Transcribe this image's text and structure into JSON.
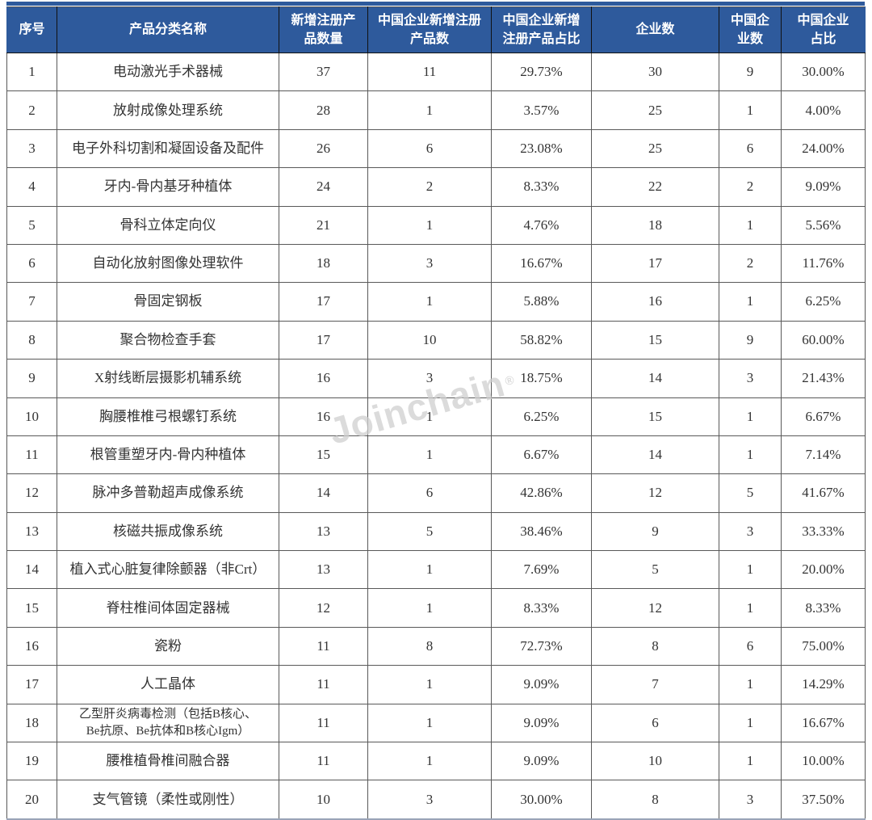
{
  "chart_data": {
    "type": "table",
    "title": "",
    "columns": [
      "序号",
      "产品分类名称",
      "新增注册产品数量",
      "中国企业新增注册产品数",
      "中国企业新增注册产品占比",
      "企业数",
      "中国企业数",
      "中国企业占比"
    ],
    "header_display": [
      "序号",
      "产品分类名称",
      "新增注册产\n品数量",
      "中国企业新增注册\n产品数",
      "中国企业新增\n注册产品占比",
      "企业数",
      "中国企\n业数",
      "中国企业\n占比"
    ],
    "rows": [
      [
        "1",
        "电动激光手术器械",
        "37",
        "11",
        "29.73%",
        "30",
        "9",
        "30.00%"
      ],
      [
        "2",
        "放射成像处理系统",
        "28",
        "1",
        "3.57%",
        "25",
        "1",
        "4.00%"
      ],
      [
        "3",
        "电子外科切割和凝固设备及配件",
        "26",
        "6",
        "23.08%",
        "25",
        "6",
        "24.00%"
      ],
      [
        "4",
        "牙内-骨内基牙种植体",
        "24",
        "2",
        "8.33%",
        "22",
        "2",
        "9.09%"
      ],
      [
        "5",
        "骨科立体定向仪",
        "21",
        "1",
        "4.76%",
        "18",
        "1",
        "5.56%"
      ],
      [
        "6",
        "自动化放射图像处理软件",
        "18",
        "3",
        "16.67%",
        "17",
        "2",
        "11.76%"
      ],
      [
        "7",
        "骨固定钢板",
        "17",
        "1",
        "5.88%",
        "16",
        "1",
        "6.25%"
      ],
      [
        "8",
        "聚合物检查手套",
        "17",
        "10",
        "58.82%",
        "15",
        "9",
        "60.00%"
      ],
      [
        "9",
        "X射线断层摄影机辅系统",
        "16",
        "3",
        "18.75%",
        "14",
        "3",
        "21.43%"
      ],
      [
        "10",
        "胸腰椎椎弓根螺钉系统",
        "16",
        "1",
        "6.25%",
        "15",
        "1",
        "6.67%"
      ],
      [
        "11",
        "根管重塑牙内-骨内种植体",
        "15",
        "1",
        "6.67%",
        "14",
        "1",
        "7.14%"
      ],
      [
        "12",
        "脉冲多普勒超声成像系统",
        "14",
        "6",
        "42.86%",
        "12",
        "5",
        "41.67%"
      ],
      [
        "13",
        "核磁共振成像系统",
        "13",
        "5",
        "38.46%",
        "9",
        "3",
        "33.33%"
      ],
      [
        "14",
        "植入式心脏复律除颤器（非Crt）",
        "13",
        "1",
        "7.69%",
        "5",
        "1",
        "20.00%"
      ],
      [
        "15",
        "脊柱椎间体固定器械",
        "12",
        "1",
        "8.33%",
        "12",
        "1",
        "8.33%"
      ],
      [
        "16",
        "瓷粉",
        "11",
        "8",
        "72.73%",
        "8",
        "6",
        "75.00%"
      ],
      [
        "17",
        "人工晶体",
        "11",
        "1",
        "9.09%",
        "7",
        "1",
        "14.29%"
      ],
      [
        "18",
        "乙型肝炎病毒检测（包括B核心、\nBe抗原、Be抗体和B核心Igm）",
        "11",
        "1",
        "9.09%",
        "6",
        "1",
        "16.67%"
      ],
      [
        "19",
        "腰椎植骨椎间融合器",
        "11",
        "1",
        "9.09%",
        "10",
        "1",
        "10.00%"
      ],
      [
        "20",
        "支气管镜（柔性或刚性）",
        "10",
        "3",
        "30.00%",
        "8",
        "3",
        "37.50%"
      ]
    ]
  },
  "watermark": {
    "text": "Joinchain",
    "registered_mark": "®"
  },
  "colors": {
    "header_bg": "#2e5a9c",
    "header_text": "#ffffff",
    "cell_border": "#595959",
    "header_border": "#111111",
    "body_text": "#333333",
    "watermark": "#cfcfcf"
  }
}
